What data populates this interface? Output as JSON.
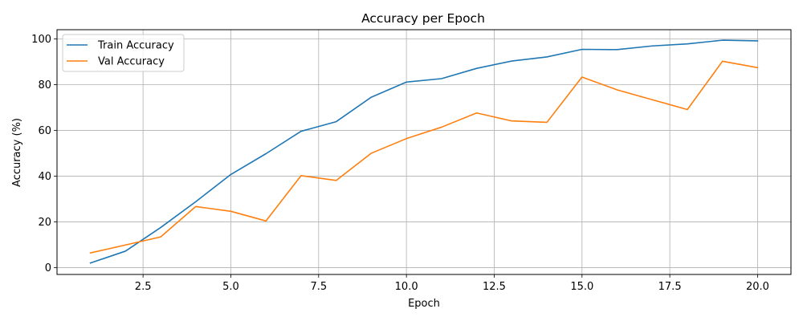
{
  "chart_data": {
    "type": "line",
    "title": "Accuracy per Epoch",
    "xlabel": "Epoch",
    "ylabel": "Accuracy (%)",
    "xlim": [
      0.05,
      20.95
    ],
    "ylim": [
      -3,
      104
    ],
    "xticks": [
      2.5,
      5.0,
      7.5,
      10.0,
      12.5,
      15.0,
      17.5,
      20.0
    ],
    "xtick_labels": [
      "2.5",
      "5.0",
      "7.5",
      "10.0",
      "12.5",
      "15.0",
      "17.5",
      "20.0"
    ],
    "yticks": [
      0,
      20,
      40,
      60,
      80,
      100
    ],
    "ytick_labels": [
      "0",
      "20",
      "40",
      "60",
      "80",
      "100"
    ],
    "grid": true,
    "legend_position": "top-left",
    "x": [
      1,
      2,
      3,
      4,
      5,
      6,
      7,
      8,
      9,
      10,
      11,
      12,
      13,
      14,
      15,
      16,
      17,
      18,
      19,
      20
    ],
    "series": [
      {
        "name": "Train Accuracy",
        "color": "#1f77b4",
        "values": [
          2.0,
          7.2,
          17.5,
          28.8,
          40.7,
          49.8,
          59.6,
          63.8,
          74.5,
          81.1,
          82.6,
          87.1,
          90.3,
          92.1,
          95.4,
          95.3,
          96.9,
          97.8,
          99.4,
          99.1
        ]
      },
      {
        "name": "Val Accuracy",
        "color": "#ff7f0e",
        "values": [
          6.4,
          9.9,
          13.4,
          26.7,
          24.6,
          20.4,
          40.2,
          38.1,
          50.0,
          56.4,
          61.4,
          67.6,
          64.1,
          63.5,
          83.3,
          77.7,
          73.4,
          69.1,
          90.2,
          87.4
        ]
      }
    ]
  }
}
